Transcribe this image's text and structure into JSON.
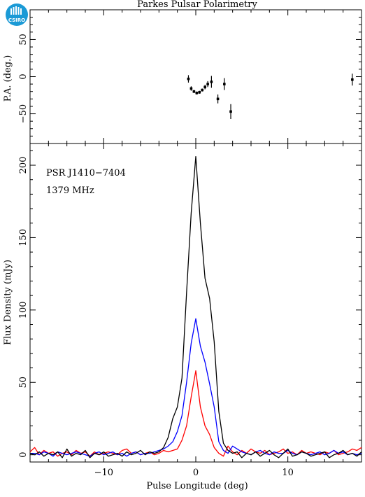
{
  "page": {
    "title": "Parkes Pulsar Polarimetry"
  },
  "logo": {
    "text": "CSIRO",
    "color": "#1b9ad6"
  },
  "chart_data": [
    {
      "type": "scatter",
      "name": "position-angle",
      "ylabel": "P.A. (deg.)",
      "xlim": [
        -18,
        18
      ],
      "ylim": [
        -90,
        90
      ],
      "yticks": [
        50,
        0,
        -50
      ],
      "yticklabels": [
        "50",
        "0",
        "−50"
      ],
      "points": [
        {
          "x": -0.8,
          "y": -3,
          "err": 5
        },
        {
          "x": -0.5,
          "y": -16,
          "err": 3
        },
        {
          "x": -0.2,
          "y": -20,
          "err": 2
        },
        {
          "x": 0.1,
          "y": -22,
          "err": 2
        },
        {
          "x": 0.4,
          "y": -21,
          "err": 2
        },
        {
          "x": 0.7,
          "y": -18,
          "err": 2
        },
        {
          "x": 1.0,
          "y": -14,
          "err": 3
        },
        {
          "x": 1.3,
          "y": -10,
          "err": 4
        },
        {
          "x": 1.7,
          "y": -7,
          "err": 8
        },
        {
          "x": 2.4,
          "y": -30,
          "err": 6
        },
        {
          "x": 3.1,
          "y": -10,
          "err": 8
        },
        {
          "x": 3.8,
          "y": -47,
          "err": 10
        },
        {
          "x": 17.0,
          "y": -4,
          "err": 8
        }
      ],
      "color": "#000000"
    },
    {
      "type": "line",
      "name": "flux-profile",
      "xlabel": "Pulse Longitude (deg)",
      "ylabel": "Flux Density (mJy)",
      "xlim": [
        -18,
        18
      ],
      "ylim": [
        -5,
        215
      ],
      "xticks": [
        -10,
        0,
        10
      ],
      "xticklabels": [
        "−10",
        "0",
        "10"
      ],
      "yticks": [
        0,
        50,
        100,
        150,
        200
      ],
      "yticklabels": [
        "0",
        "50",
        "100",
        "150",
        "200"
      ],
      "annotations": [
        "PSR J1410−7404",
        "1379 MHz"
      ],
      "x": [
        -18,
        -17.5,
        -17,
        -16.5,
        -16,
        -15.5,
        -15,
        -14.5,
        -14,
        -13.5,
        -13,
        -12.5,
        -12,
        -11.5,
        -11,
        -10.5,
        -10,
        -9.5,
        -9,
        -8.5,
        -8,
        -7.5,
        -7,
        -6.5,
        -6,
        -5.5,
        -5,
        -4.5,
        -4,
        -3.5,
        -3,
        -2.5,
        -2,
        -1.5,
        -1,
        -0.5,
        0,
        0.5,
        1,
        1.5,
        2,
        2.5,
        3,
        3.5,
        4,
        4.5,
        5,
        5.5,
        6,
        6.5,
        7,
        7.5,
        8,
        8.5,
        9,
        9.5,
        10,
        10.5,
        11,
        11.5,
        12,
        12.5,
        13,
        13.5,
        14,
        14.5,
        15,
        15.5,
        16,
        16.5,
        17,
        17.5,
        18
      ],
      "series": [
        {
          "color": "#000000",
          "values": [
            1,
            0,
            2,
            -1,
            1,
            0,
            2,
            -2,
            4,
            -1,
            1,
            0,
            3,
            -2,
            1,
            0,
            2,
            -1,
            0,
            1,
            -1,
            2,
            0,
            1,
            3,
            0,
            2,
            1,
            2,
            5,
            12,
            25,
            33,
            53,
            112,
            167,
            206,
            160,
            122,
            108,
            78,
            30,
            8,
            3,
            1,
            2,
            -2,
            1,
            0,
            2,
            -1,
            1,
            3,
            0,
            -2,
            1,
            4,
            -1,
            0,
            2,
            1,
            -1,
            0,
            1,
            2,
            -2,
            0,
            1,
            3,
            0,
            1,
            -1,
            2
          ]
        },
        {
          "color": "#0000ff",
          "values": [
            1,
            1,
            0,
            2,
            1,
            -1,
            2,
            1,
            0,
            1,
            2,
            1,
            0,
            -1,
            1,
            2,
            0,
            1,
            2,
            0,
            1,
            -1,
            1,
            2,
            0,
            1,
            1,
            2,
            3,
            4,
            6,
            9,
            16,
            27,
            50,
            77,
            94,
            75,
            64,
            49,
            33,
            9,
            3,
            1,
            6,
            4,
            2,
            1,
            0,
            2,
            3,
            1,
            0,
            2,
            1,
            1,
            3,
            1,
            0,
            2,
            1,
            0,
            1,
            2,
            0,
            1,
            3,
            1,
            2,
            0,
            1,
            0,
            1
          ]
        },
        {
          "color": "#ff0000",
          "values": [
            2,
            5,
            0,
            3,
            1,
            2,
            -1,
            1,
            2,
            0,
            3,
            1,
            2,
            -1,
            2,
            0,
            1,
            2,
            1,
            0,
            3,
            4,
            1,
            2,
            0,
            1,
            2,
            0,
            1,
            3,
            2,
            3,
            4,
            10,
            20,
            40,
            58,
            33,
            20,
            14,
            5,
            1,
            -1,
            6,
            2,
            0,
            3,
            1,
            4,
            2,
            1,
            3,
            0,
            1,
            2,
            4,
            1,
            2,
            0,
            3,
            1,
            2,
            1,
            0,
            2,
            1,
            3,
            0,
            1,
            2,
            4,
            3,
            5
          ]
        }
      ]
    }
  ]
}
